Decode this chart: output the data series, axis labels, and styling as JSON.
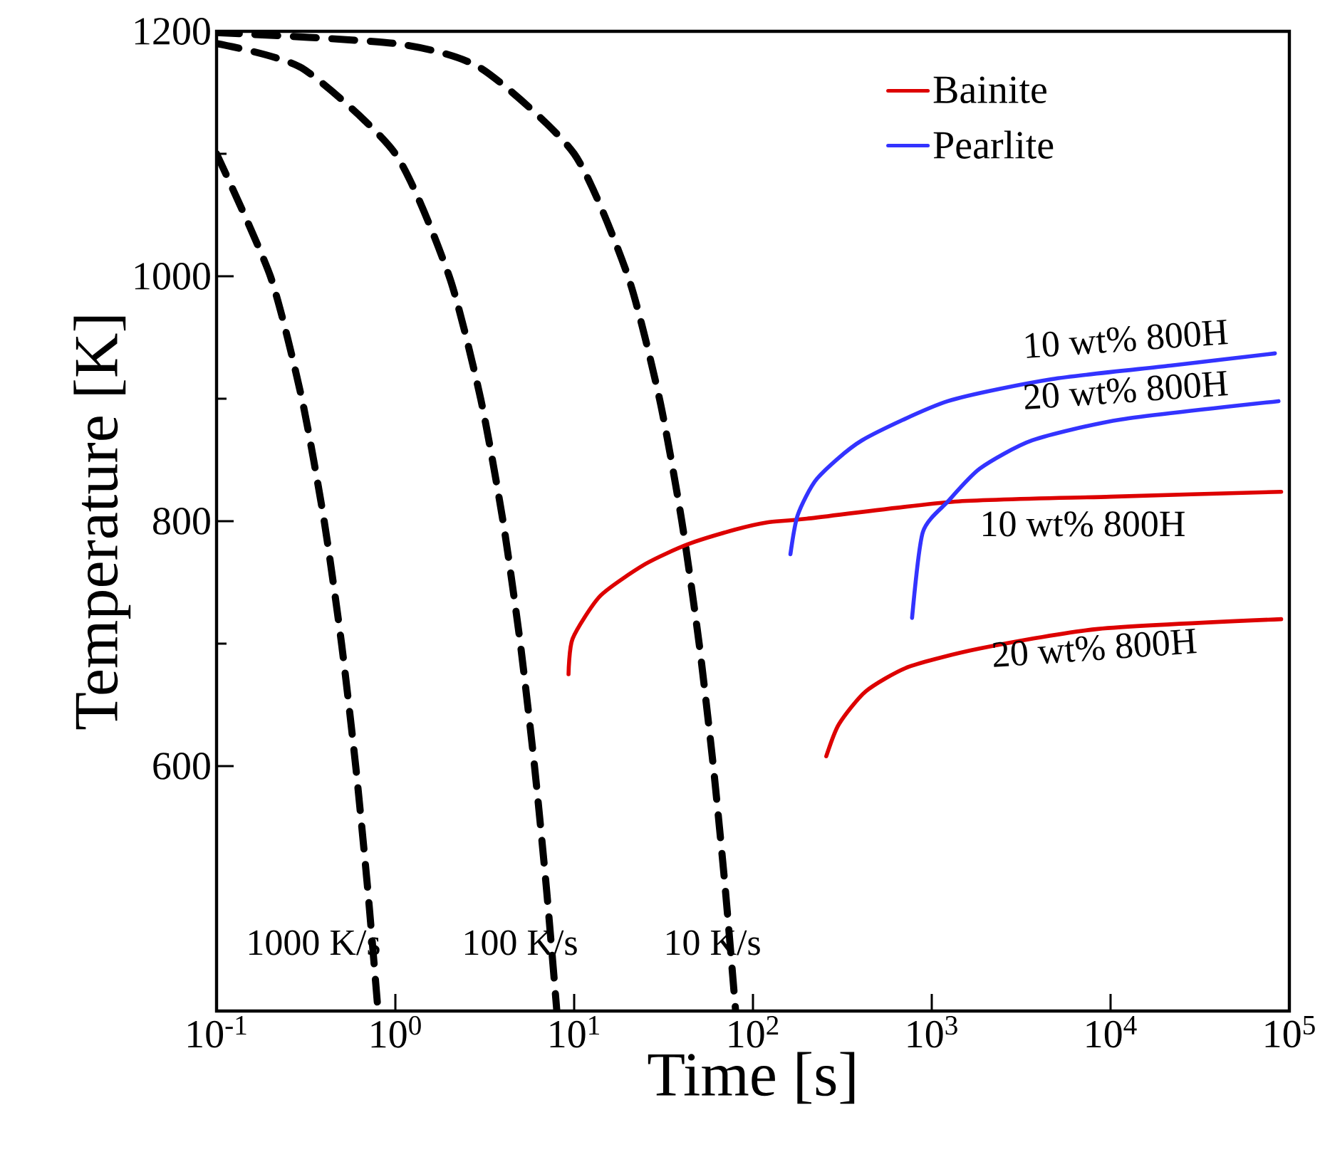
{
  "chart_data": {
    "type": "line",
    "xlabel": "Time [s]",
    "ylabel": "Temperature [K]",
    "log": "x",
    "xlim": [
      0.1,
      100000
    ],
    "ylim": [
      400,
      1200
    ],
    "xticks": [
      {
        "value": 0.1,
        "label": "10$^{-1}$"
      },
      {
        "value": 1,
        "label": "10$^{0}$"
      },
      {
        "value": 10,
        "label": "10$^{1}$"
      },
      {
        "value": 100,
        "label": "10$^{2}$"
      },
      {
        "value": 1000,
        "label": "10$^{3}$"
      },
      {
        "value": 10000,
        "label": "10$^{4}$"
      },
      {
        "value": 100000,
        "label": "10$^{5}$"
      }
    ],
    "yticks": [
      600,
      800,
      1000,
      1200
    ],
    "grid": false,
    "legend": "top right",
    "marker": "none",
    "series": [
      {
        "color": "#000000",
        "line_style": "dashed",
        "x": [
          0.1,
          0.2,
          0.3,
          0.4,
          0.5,
          0.6,
          0.7,
          0.8
        ],
        "values": [
          1100,
          1000,
          900,
          800,
          700,
          600,
          500,
          400
        ]
      },
      {
        "color": "#000000",
        "line_style": "dashed",
        "x": [
          0.1,
          0.3,
          1,
          2,
          3,
          4,
          5,
          6,
          7,
          8
        ],
        "values": [
          1190,
          1170,
          1100,
          1000,
          900,
          800,
          700,
          600,
          500,
          400
        ]
      },
      {
        "color": "#000000",
        "line_style": "dashed",
        "x": [
          0.1,
          1,
          3,
          10,
          20,
          30,
          40,
          50,
          60,
          70,
          80
        ],
        "values": [
          1199,
          1190,
          1170,
          1100,
          1000,
          900,
          800,
          700,
          600,
          500,
          400
        ]
      },
      {
        "name": "Bainite",
        "color": "#dd0000",
        "line_style": "solid",
        "x": [
          9.3,
          9.8,
          14,
          25,
          43,
          79,
          120,
          200,
          1350,
          10000,
          90000
        ],
        "values": [
          675,
          704,
          739,
          765,
          781,
          793,
          799,
          802,
          816,
          820,
          824
        ]
      },
      {
        "color": "#dd0000",
        "line_style": "solid",
        "x": [
          257,
          302,
          427,
          741,
          1860,
          8500,
          90000
        ],
        "values": [
          608,
          634,
          661,
          681,
          696,
          712,
          720
        ]
      },
      {
        "name": "Pearlite",
        "color": "#3333ff",
        "line_style": "solid",
        "x": [
          162,
          178,
          229,
          407,
          1230,
          4700,
          21600,
          83000
        ],
        "values": [
          773,
          805,
          835,
          866,
          898,
          916,
          927,
          937
        ]
      },
      {
        "color": "#3333ff",
        "line_style": "solid",
        "x": [
          776,
          891,
          1230,
          1860,
          3650,
          11400,
          87000
        ],
        "values": [
          721,
          791,
          816,
          843,
          866,
          883,
          898
        ]
      }
    ],
    "annotations": [
      "1000 K/s",
      "100 K/s",
      "10 K/s",
      "10 wt% 800H",
      "20 wt% 800H",
      "10 wt% 800H",
      "20 wt% 800H"
    ]
  }
}
